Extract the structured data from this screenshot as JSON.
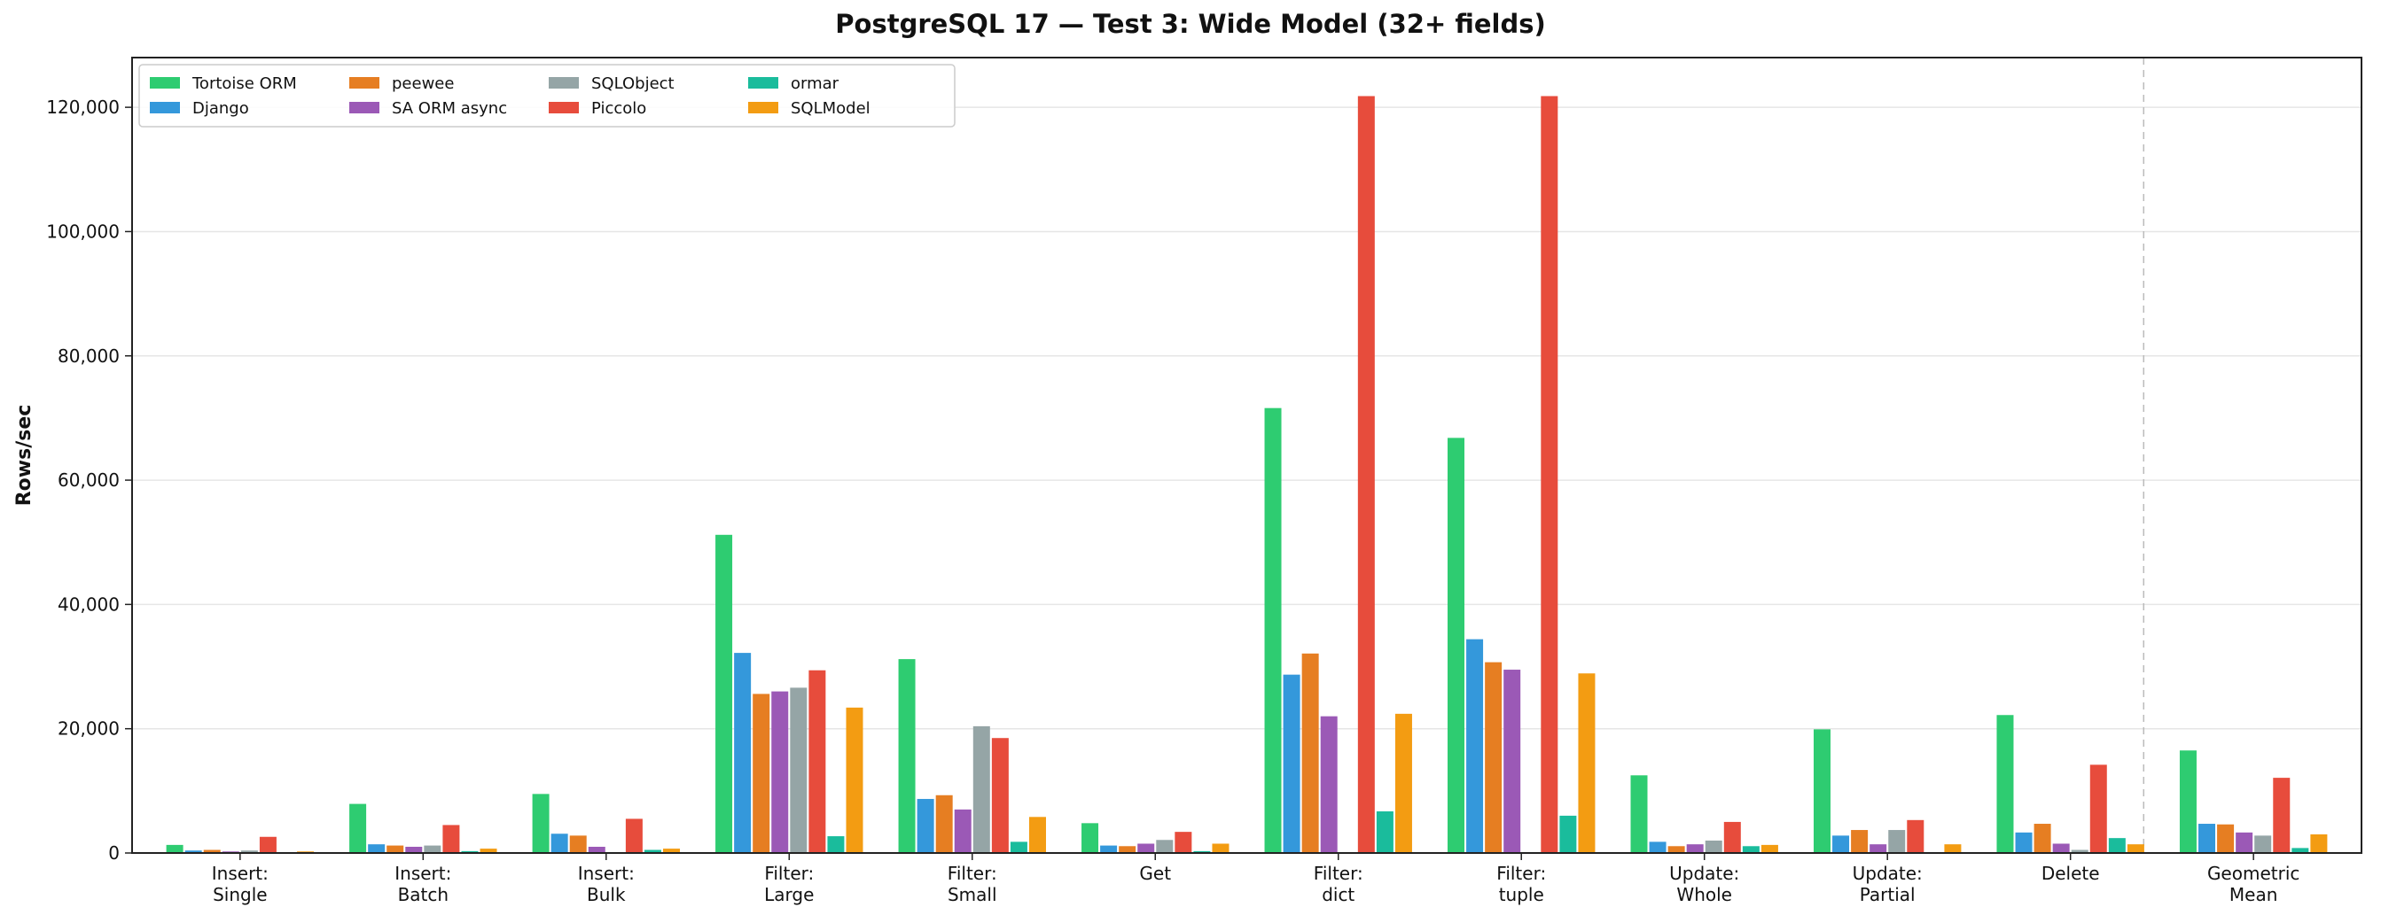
{
  "chart_data": {
    "type": "bar",
    "title": "PostgreSQL 17 — Test 3: Wide Model (32+ fields)",
    "xlabel": "",
    "ylabel": "Rows/sec",
    "ylim": [
      0,
      128000
    ],
    "yticks": [
      0,
      20000,
      40000,
      60000,
      80000,
      100000,
      120000
    ],
    "ytick_labels": [
      "0",
      "20,000",
      "40,000",
      "60,000",
      "80,000",
      "100,000",
      "120,000"
    ],
    "grid": "horizontal",
    "legend_placement": "top-left",
    "legend_columns": 4,
    "separator_before_category": "Geometric\nMean",
    "categories": [
      "Insert:\nSingle",
      "Insert:\nBatch",
      "Insert:\nBulk",
      "Filter:\nLarge",
      "Filter:\nSmall",
      "Get",
      "Filter:\ndict",
      "Filter:\ntuple",
      "Update:\nWhole",
      "Update:\nPartial",
      "Delete",
      "Geometric\nMean"
    ],
    "series": [
      {
        "name": "Tortoise ORM",
        "color": "#2ecc71",
        "values": [
          1300,
          7900,
          9500,
          51200,
          31200,
          4800,
          71600,
          66800,
          12500,
          19900,
          22200,
          16500
        ]
      },
      {
        "name": "Django",
        "color": "#3498db",
        "values": [
          400,
          1400,
          3100,
          32200,
          8700,
          1200,
          28700,
          34400,
          1800,
          2800,
          3300,
          4700
        ]
      },
      {
        "name": "peewee",
        "color": "#e67e22",
        "values": [
          500,
          1200,
          2800,
          25600,
          9300,
          1100,
          32100,
          30700,
          1100,
          3700,
          4700,
          4600
        ]
      },
      {
        "name": "SA ORM async",
        "color": "#9b59b6",
        "values": [
          250,
          1000,
          1000,
          26000,
          7000,
          1500,
          22000,
          29500,
          1400,
          1400,
          1500,
          3300
        ]
      },
      {
        "name": "SQLObject",
        "color": "#95a5a6",
        "values": [
          400,
          1200,
          0,
          26600,
          20400,
          2100,
          0,
          0,
          2000,
          3700,
          500,
          2800
        ]
      },
      {
        "name": "Piccolo",
        "color": "#e74c3c",
        "values": [
          2600,
          4500,
          5500,
          29400,
          18500,
          3400,
          121800,
          121800,
          5000,
          5300,
          14200,
          12100
        ]
      },
      {
        "name": "ormar",
        "color": "#1abc9c",
        "values": [
          0,
          300,
          500,
          2700,
          1800,
          300,
          6700,
          6000,
          1100,
          0,
          2400,
          800
        ]
      },
      {
        "name": "SQLModel",
        "color": "#f39c12",
        "values": [
          250,
          700,
          700,
          23400,
          5800,
          1500,
          22400,
          28900,
          1300,
          1400,
          1400,
          3000
        ]
      }
    ]
  }
}
